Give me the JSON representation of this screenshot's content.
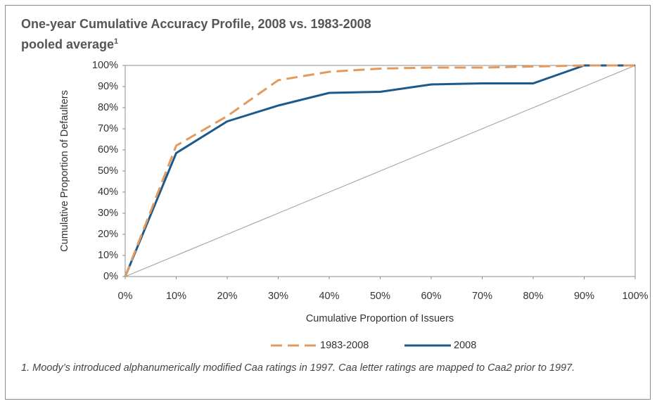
{
  "chart_data": {
    "type": "line",
    "title": "One-year Cumulative Accuracy Profile, 2008 vs. 1983-2008 pooled average",
    "title_superscript": "1",
    "x_label": "Cumulative Proportion of Issuers",
    "y_label": "Cumulative Proportion of Defaulters",
    "x": [
      0,
      10,
      20,
      30,
      40,
      50,
      60,
      70,
      80,
      90,
      100
    ],
    "series": [
      {
        "name": "1983-2008",
        "color": "#e39a5d",
        "dashed": true,
        "values": [
          0,
          62,
          76,
          93,
          97,
          98.5,
          99,
          99,
          99.5,
          100,
          100
        ]
      },
      {
        "name": "2008",
        "color": "#1d5a8c",
        "dashed": false,
        "values": [
          0,
          58.5,
          73.5,
          81,
          87,
          87.5,
          91,
          91.5,
          91.5,
          100,
          100
        ]
      },
      {
        "color": "#a6a6a6",
        "dashed": false,
        "values": [
          0,
          10,
          20,
          30,
          40,
          50,
          60,
          70,
          80,
          90,
          100
        ]
      }
    ],
    "xlim": [
      0,
      100
    ],
    "ylim": [
      0,
      100
    ],
    "xticks": [
      {
        "value": 0,
        "label": "0%"
      },
      {
        "value": 10,
        "label": "10%"
      },
      {
        "value": 20,
        "label": "20%"
      },
      {
        "value": 30,
        "label": "30%"
      },
      {
        "value": 40,
        "label": "40%"
      },
      {
        "value": 50,
        "label": "50%"
      },
      {
        "value": 60,
        "label": "60%"
      },
      {
        "value": 70,
        "label": "70%"
      },
      {
        "value": 80,
        "label": "80%"
      },
      {
        "value": 90,
        "label": "90%"
      },
      {
        "value": 100,
        "label": "100%"
      }
    ],
    "yticks": [
      {
        "value": 0,
        "label": "0%"
      },
      {
        "value": 10,
        "label": "10%"
      },
      {
        "value": 20,
        "label": "20%"
      },
      {
        "value": 30,
        "label": "30%"
      },
      {
        "value": 40,
        "label": "40%"
      },
      {
        "value": 50,
        "label": "50%"
      },
      {
        "value": 60,
        "label": "60%"
      },
      {
        "value": 70,
        "label": "70%"
      },
      {
        "value": 80,
        "label": "80%"
      },
      {
        "value": 90,
        "label": "90%"
      },
      {
        "value": 100,
        "label": "100%"
      }
    ],
    "grid": false,
    "legend": "bottom",
    "footnote": "1. Moody’s introduced alphanumerically modified Caa ratings in 1997. Caa letter ratings are mapped to Caa2 prior to 1997."
  }
}
